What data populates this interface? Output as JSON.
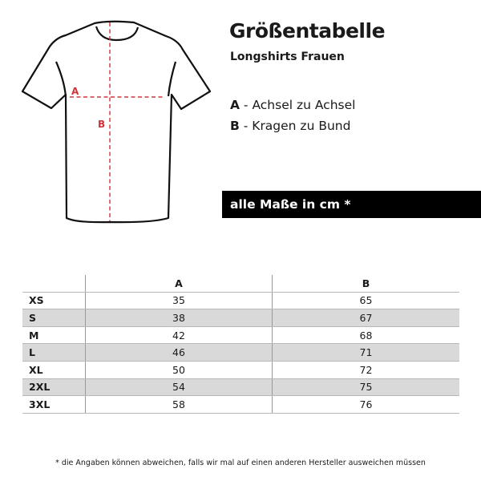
{
  "title": "Größentabelle",
  "subtitle": "Longshirts Frauen",
  "diagram": {
    "label_a": "A",
    "label_b": "B",
    "measure_color": "#d0333a"
  },
  "legend": [
    {
      "key": "A",
      "text": " - Achsel zu Achsel"
    },
    {
      "key": "B",
      "text": " - Kragen zu Bund"
    }
  ],
  "units_bar": "alle Maße in cm *",
  "table": {
    "headers": [
      "",
      "A",
      "B"
    ],
    "rows": [
      {
        "size": "XS",
        "a": "35",
        "b": "65"
      },
      {
        "size": "S",
        "a": "38",
        "b": "67"
      },
      {
        "size": "M",
        "a": "42",
        "b": "68"
      },
      {
        "size": "L",
        "a": "46",
        "b": "71"
      },
      {
        "size": "XL",
        "a": "50",
        "b": "72"
      },
      {
        "size": "2XL",
        "a": "54",
        "b": "75"
      },
      {
        "size": "3XL",
        "a": "58",
        "b": "76"
      }
    ]
  },
  "footnote": "* die Angaben können abweichen, falls wir mal auf einen anderen Hersteller ausweichen müssen"
}
